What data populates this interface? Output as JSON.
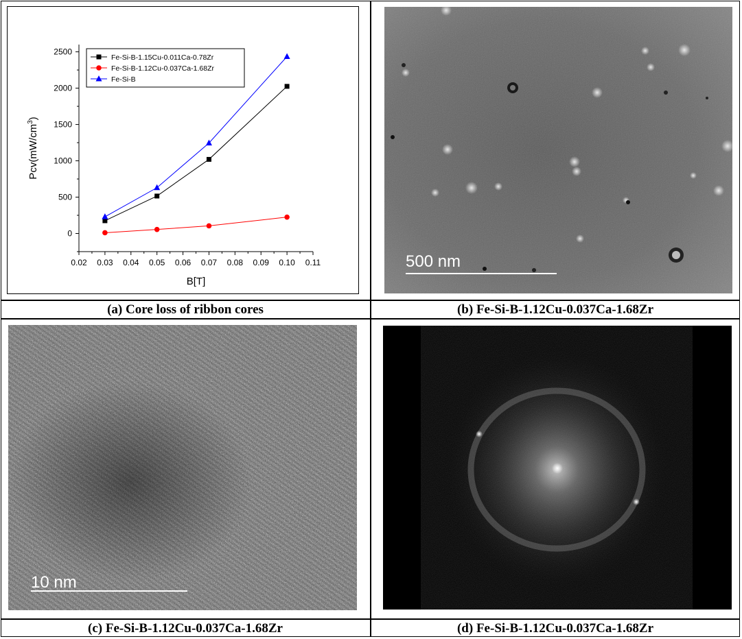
{
  "chart_data": {
    "type": "line",
    "xlabel": "B[T]",
    "ylabel": "Pcv(mW/cm",
    "ylabel_superscript": "3",
    "ylabel_suffix": ")",
    "xlim": [
      0.02,
      0.11
    ],
    "ylim": [
      -250,
      2600
    ],
    "x_ticks": [
      "0.02",
      "0.03",
      "0.04",
      "0.05",
      "0.06",
      "0.07",
      "0.08",
      "0.09",
      "0.10",
      "0.11"
    ],
    "y_ticks": [
      "0",
      "500",
      "1000",
      "1500",
      "2000",
      "2500"
    ],
    "legend_position": "top-left",
    "x": [
      0.03,
      0.05,
      0.07,
      0.1
    ],
    "series": [
      {
        "name": "Fe-Si-B-1.15Cu-0.011Ca-0.78Zr",
        "color": "#000000",
        "marker": "square",
        "values": [
          175,
          515,
          1020,
          2025
        ]
      },
      {
        "name": "Fe-Si-B-1.12Cu-0.037Ca-1.68Zr",
        "color": "#ff0000",
        "marker": "circle",
        "values": [
          10,
          55,
          105,
          225
        ]
      },
      {
        "name": "Fe-Si-B",
        "color": "#0000ff",
        "marker": "triangle",
        "values": [
          230,
          630,
          1245,
          2435
        ]
      }
    ]
  },
  "panels": {
    "a_caption": "(a) Core loss of ribbon cores",
    "b_caption": "(b) Fe-Si-B-1.12Cu-0.037Ca-1.68Zr",
    "c_caption": "(c) Fe-Si-B-1.12Cu-0.037Ca-1.68Zr",
    "d_caption": "(d) Fe-Si-B-1.12Cu-0.037Ca-1.68Zr",
    "b_scale_label": "500 nm",
    "c_scale_label": "10 nm"
  }
}
